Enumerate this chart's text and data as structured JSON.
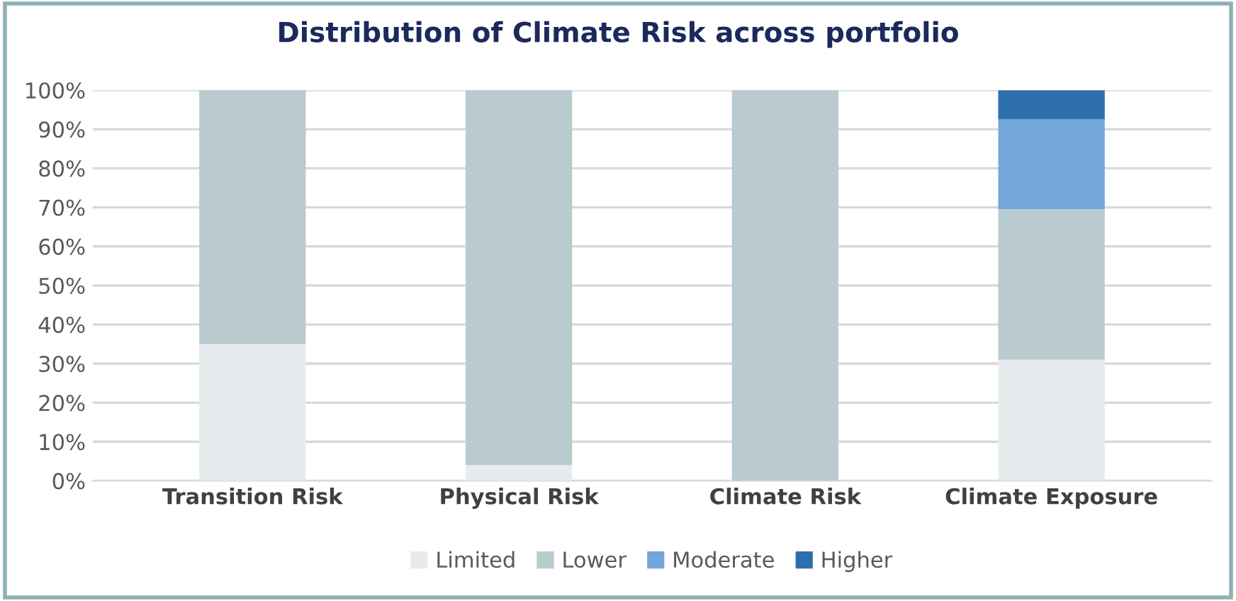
{
  "chart_data": {
    "type": "bar",
    "stacked": true,
    "title": "Distribution of Climate Risk across portfolio",
    "categories": [
      "Transition Risk",
      "Physical Risk",
      "Climate Risk",
      "Climate Exposure"
    ],
    "series": [
      {
        "name": "Limited",
        "color": "#e6ecee",
        "values": [
          35,
          4,
          0,
          31
        ]
      },
      {
        "name": "Lower",
        "color": "#b9cbcf",
        "values": [
          65,
          96,
          100,
          38.5
        ]
      },
      {
        "name": "Moderate",
        "color": "#73a7d8",
        "values": [
          0,
          0,
          0,
          23
        ]
      },
      {
        "name": "Higher",
        "color": "#2e6fad",
        "values": [
          0,
          0,
          0,
          7.5
        ]
      }
    ],
    "ylim": [
      0,
      100
    ],
    "yticks": [
      {
        "value": 0,
        "label": "0%"
      },
      {
        "value": 10,
        "label": "10%"
      },
      {
        "value": 20,
        "label": "20%"
      },
      {
        "value": 30,
        "label": "30%"
      },
      {
        "value": 40,
        "label": "40%"
      },
      {
        "value": 50,
        "label": "50%"
      },
      {
        "value": 60,
        "label": "60%"
      },
      {
        "value": 70,
        "label": "70%"
      },
      {
        "value": 80,
        "label": "80%"
      },
      {
        "value": 90,
        "label": "90%"
      },
      {
        "value": 100,
        "label": "100%"
      }
    ],
    "grid": "y",
    "legend": "bottom"
  }
}
